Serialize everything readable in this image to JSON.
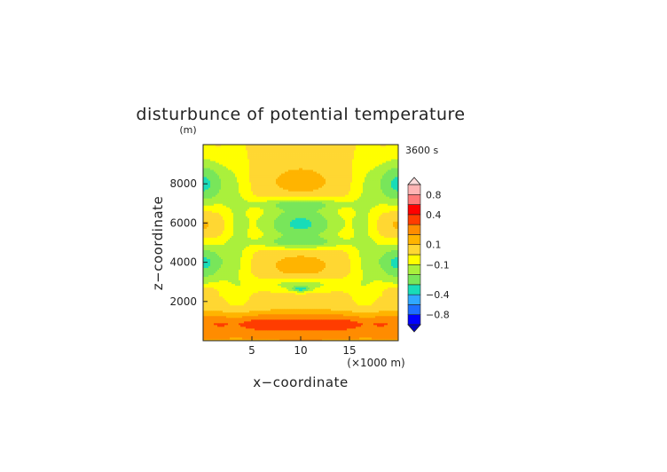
{
  "chart_data": {
    "type": "heatmap",
    "title": "disturbunce of potential temperature",
    "time_label": "3600 s",
    "xlabel": "x−coordinate",
    "ylabel": "z−coordinate",
    "x_unit_label": "(×1000 m)",
    "y_unit_label": "(m)",
    "xlim": [
      0,
      20
    ],
    "ylim": [
      0,
      10000
    ],
    "x_ticks": [
      5,
      10,
      15
    ],
    "y_ticks": [
      2000,
      4000,
      6000,
      8000
    ],
    "x_tick_labels": [
      "5",
      "10",
      "15"
    ],
    "y_tick_labels": [
      "2000",
      "4000",
      "6000",
      "8000"
    ],
    "grid": false,
    "legend_placement": "right",
    "colorbar": {
      "levels": [
        -1.0,
        -0.8,
        -0.6,
        -0.4,
        -0.3,
        -0.2,
        -0.1,
        0.0,
        0.1,
        0.2,
        0.3,
        0.4,
        0.6,
        0.8,
        1.0
      ],
      "colors": [
        "#0000ff",
        "#1e6eff",
        "#30a8ff",
        "#18dcb8",
        "#78e65a",
        "#aaf03c",
        "#ffff00",
        "#ffd732",
        "#ffb400",
        "#ff8c00",
        "#ff3c00",
        "#ff0000",
        "#ff7878",
        "#ffb4b4"
      ],
      "tick_labels": [
        "−0.8",
        "−0.4",
        "−0.1",
        "0.1",
        "0.4",
        "0.8"
      ],
      "tick_values": [
        -0.8,
        -0.4,
        -0.1,
        0.1,
        0.4,
        0.8
      ],
      "extend": "both"
    },
    "features": [
      {
        "x": 10,
        "z": 8000,
        "value": 0.15
      },
      {
        "x": 10,
        "z": 6000,
        "value": -0.35
      },
      {
        "x": 10,
        "z": 3900,
        "value": 0.15
      },
      {
        "x": 10,
        "z": 2650,
        "value": -0.3
      },
      {
        "x": 10,
        "z": 800,
        "value": 0.45
      },
      {
        "x": 0.5,
        "z": 8000,
        "value": -0.35
      },
      {
        "x": 0.5,
        "z": 6000,
        "value": 0.15
      },
      {
        "x": 0.5,
        "z": 4000,
        "value": -0.35
      },
      {
        "x": 19.5,
        "z": 8000,
        "value": -0.35
      },
      {
        "x": 19.5,
        "z": 6000,
        "value": 0.15
      },
      {
        "x": 19.5,
        "z": 4000,
        "value": -0.35
      }
    ]
  }
}
